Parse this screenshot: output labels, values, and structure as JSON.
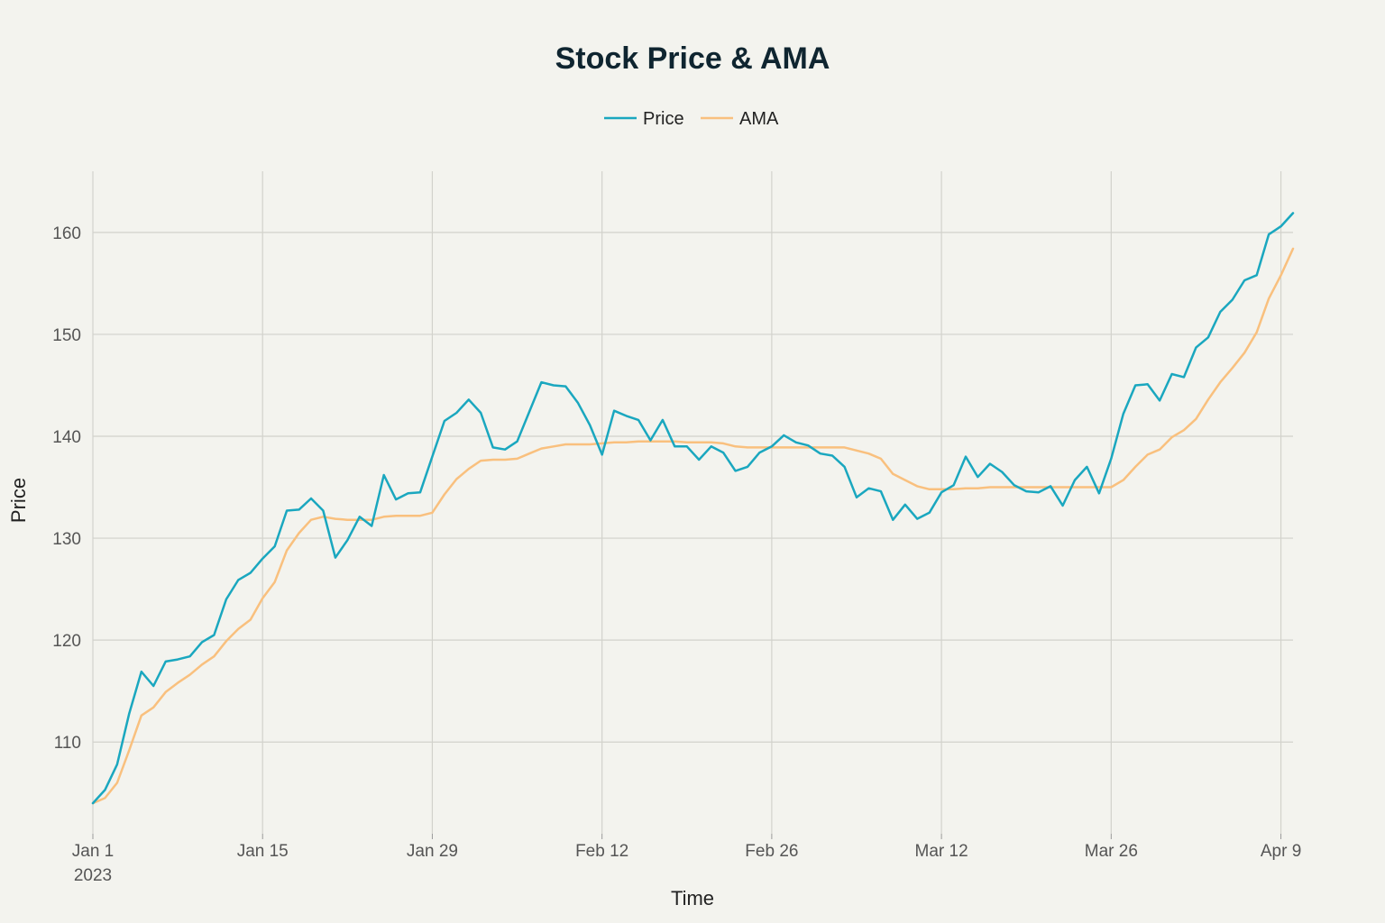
{
  "chart_data": {
    "type": "line",
    "title": "Stock Price & AMA",
    "xlabel": "Time",
    "ylabel": "Price",
    "x_start": "2023-01-01",
    "x_end": "2023-04-10",
    "xticks": [
      {
        "date": "2023-01-01",
        "label": "Jan 1",
        "sublabel": "2023"
      },
      {
        "date": "2023-01-15",
        "label": "Jan 15",
        "sublabel": ""
      },
      {
        "date": "2023-01-29",
        "label": "Jan 29",
        "sublabel": ""
      },
      {
        "date": "2023-02-12",
        "label": "Feb 12",
        "sublabel": ""
      },
      {
        "date": "2023-02-26",
        "label": "Feb 26",
        "sublabel": ""
      },
      {
        "date": "2023-03-12",
        "label": "Mar 12",
        "sublabel": ""
      },
      {
        "date": "2023-03-26",
        "label": "Mar 26",
        "sublabel": ""
      },
      {
        "date": "2023-04-09",
        "label": "Apr 9",
        "sublabel": ""
      }
    ],
    "yticks": [
      110,
      120,
      130,
      140,
      150,
      160
    ],
    "ylim": [
      101,
      166
    ],
    "grid": true,
    "legend_position": "top-center",
    "series": [
      {
        "name": "Price",
        "color": "#1aa7bf",
        "values": [
          104.0,
          105.3,
          107.8,
          112.8,
          116.9,
          115.5,
          117.9,
          118.1,
          118.4,
          119.8,
          120.5,
          124.0,
          125.9,
          126.6,
          128.0,
          129.2,
          132.7,
          132.8,
          133.9,
          132.7,
          128.1,
          129.8,
          132.1,
          131.2,
          136.2,
          133.8,
          134.4,
          134.5,
          138.0,
          141.5,
          142.3,
          143.6,
          142.3,
          138.9,
          138.7,
          139.5,
          142.4,
          145.3,
          145.0,
          144.9,
          143.3,
          141.1,
          138.2,
          142.5,
          142.0,
          141.6,
          139.6,
          141.6,
          139.0,
          139.0,
          137.7,
          139.0,
          138.4,
          136.6,
          137.0,
          138.4,
          139.0,
          140.1,
          139.4,
          139.1,
          138.3,
          138.1,
          137.0,
          134.0,
          134.9,
          134.6,
          131.8,
          133.3,
          131.9,
          132.5,
          134.5,
          135.2,
          138.0,
          136.0,
          137.3,
          136.5,
          135.2,
          134.6,
          134.5,
          135.1,
          133.2,
          135.7,
          137.0,
          134.4,
          137.8,
          142.2,
          145.0,
          145.1,
          143.5,
          146.1,
          145.8,
          148.7,
          149.7,
          152.2,
          153.4,
          155.3,
          155.8,
          159.8,
          160.6,
          161.9
        ]
      },
      {
        "name": "AMA",
        "color": "#f9c07e",
        "values": [
          104.0,
          104.5,
          106.0,
          109.2,
          112.6,
          113.4,
          114.9,
          115.8,
          116.6,
          117.6,
          118.4,
          119.9,
          121.1,
          122.0,
          124.1,
          125.7,
          128.8,
          130.5,
          131.8,
          132.1,
          131.9,
          131.8,
          131.8,
          131.8,
          132.1,
          132.2,
          132.2,
          132.2,
          132.5,
          134.3,
          135.8,
          136.8,
          137.6,
          137.7,
          137.7,
          137.8,
          138.3,
          138.8,
          139.0,
          139.2,
          139.2,
          139.2,
          139.3,
          139.4,
          139.4,
          139.5,
          139.5,
          139.5,
          139.5,
          139.4,
          139.4,
          139.4,
          139.3,
          139.0,
          138.9,
          138.9,
          138.9,
          138.9,
          138.9,
          138.9,
          138.9,
          138.9,
          138.9,
          138.6,
          138.3,
          137.8,
          136.3,
          135.7,
          135.1,
          134.8,
          134.8,
          134.8,
          134.9,
          134.9,
          135.0,
          135.0,
          135.0,
          135.0,
          135.0,
          135.0,
          135.0,
          135.0,
          135.0,
          135.0,
          135.0,
          135.7,
          137.0,
          138.2,
          138.7,
          139.9,
          140.6,
          141.7,
          143.6,
          145.3,
          146.7,
          148.2,
          150.2,
          153.5,
          155.8,
          158.4
        ]
      }
    ]
  }
}
